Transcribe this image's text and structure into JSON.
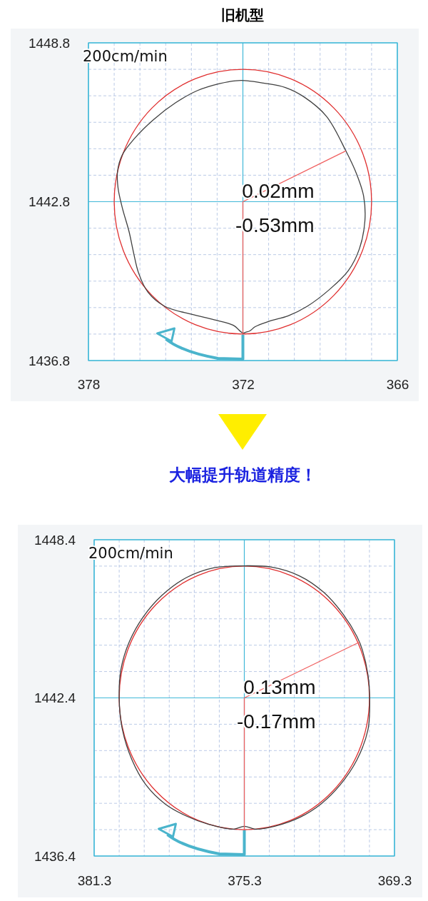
{
  "chart_data": [
    {
      "type": "line",
      "title": "旧机型",
      "xlim": [
        378,
        366
      ],
      "ylim": [
        1436.8,
        1448.8
      ],
      "xticks": [
        378,
        {
          "value": 377,
          "label": null
        },
        {
          "value": 376,
          "label": null
        },
        {
          "value": 375,
          "label": null
        },
        {
          "value": 374,
          "label": null
        },
        {
          "value": 373,
          "label": null
        },
        372,
        {
          "value": 371,
          "label": null
        },
        {
          "value": 370,
          "label": null
        },
        {
          "value": 369,
          "label": null
        },
        {
          "value": 368,
          "label": null
        },
        {
          "value": 367,
          "label": null
        },
        366
      ],
      "yticks": [
        1436.8,
        {
          "value": 1437.8,
          "label": null
        },
        {
          "value": 1438.8,
          "label": null
        },
        {
          "value": 1439.8,
          "label": null
        },
        {
          "value": 1440.8,
          "label": null
        },
        {
          "value": 1441.8,
          "label": null
        },
        1442.8,
        {
          "value": 1443.8,
          "label": null
        },
        {
          "value": 1444.8,
          "label": null
        },
        {
          "value": 1445.8,
          "label": null
        },
        {
          "value": 1446.8,
          "label": null
        },
        {
          "value": 1447.8,
          "label": null
        },
        1448.8
      ],
      "grid": true,
      "series": [
        {
          "color": "#f06060",
          "x": [
            372,
            368
          ],
          "values": [
            1442.8,
            1444.72
          ]
        },
        {
          "color": "#f06060",
          "x": [
            372,
            372
          ],
          "values": [
            1442.8,
            1437.8
          ]
        }
      ],
      "annotations": [
        "200cm/min",
        "0.02mm",
        "-0.53mm",
        "大幅提升轨道精度！"
      ]
    },
    {
      "type": "line",
      "xlim": [
        381.3,
        369.3
      ],
      "ylim": [
        1436.4,
        1448.4
      ],
      "xticks": [
        381.3,
        {
          "value": 380.3,
          "label": null
        },
        {
          "value": 379.3,
          "label": null
        },
        {
          "value": 378.3,
          "label": null
        },
        {
          "value": 377.3,
          "label": null
        },
        {
          "value": 376.3,
          "label": null
        },
        375.3,
        {
          "value": 374.3,
          "label": null
        },
        {
          "value": 373.3,
          "label": null
        },
        {
          "value": 372.3,
          "label": null
        },
        {
          "value": 371.3,
          "label": null
        },
        {
          "value": 370.3,
          "label": null
        },
        369.3
      ],
      "yticks": [
        1436.4,
        {
          "value": 1437.4,
          "label": null
        },
        {
          "value": 1438.4,
          "label": null
        },
        {
          "value": 1439.4,
          "label": null
        },
        {
          "value": 1440.4,
          "label": null
        },
        {
          "value": 1441.4,
          "label": null
        },
        1442.4,
        {
          "value": 1443.4,
          "label": null
        },
        {
          "value": 1444.4,
          "label": null
        },
        {
          "value": 1445.4,
          "label": null
        },
        {
          "value": 1446.4,
          "label": null
        },
        {
          "value": 1447.4,
          "label": null
        },
        1448.4
      ],
      "grid": true,
      "series": [
        {
          "color": "#f06060",
          "x": [
            375.3,
            370.69
          ],
          "values": [
            1442.4,
            1444.52
          ]
        },
        {
          "color": "#f06060",
          "x": [
            375.3,
            375.3
          ],
          "values": [
            1442.4,
            1437.4
          ]
        }
      ],
      "annotations": [
        "200cm/min",
        "0.13mm",
        "-0.17mm"
      ]
    }
  ]
}
